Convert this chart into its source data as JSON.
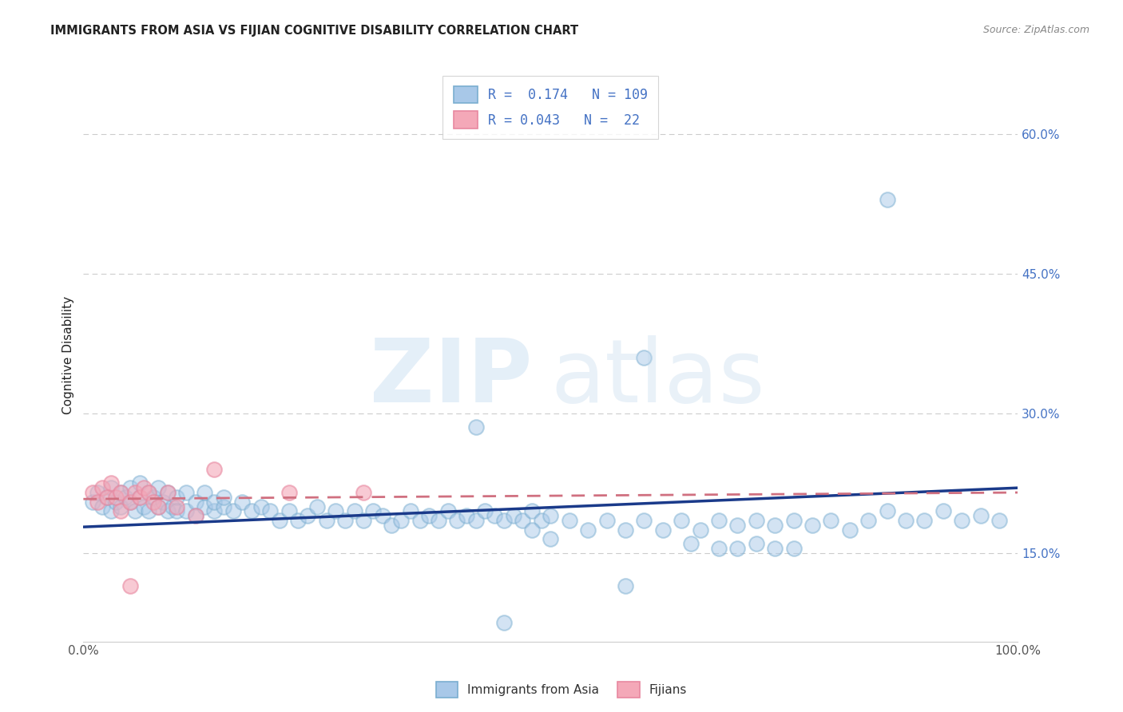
{
  "title": "IMMIGRANTS FROM ASIA VS FIJIAN COGNITIVE DISABILITY CORRELATION CHART",
  "source": "Source: ZipAtlas.com",
  "ylabel": "Cognitive Disability",
  "right_yticklabels": [
    "15.0%",
    "30.0%",
    "45.0%",
    "60.0%"
  ],
  "right_yticks": [
    0.15,
    0.3,
    0.45,
    0.6
  ],
  "xlim": [
    0.0,
    1.0
  ],
  "ylim": [
    0.055,
    0.67
  ],
  "blue_color": "#A8C8E8",
  "blue_edge_color": "#7aaed0",
  "pink_color": "#F4A8B8",
  "pink_edge_color": "#e888a0",
  "blue_line_color": "#1a3a8a",
  "pink_line_color": "#d07080",
  "grid_color": "#CCCCCC",
  "title_color": "#222222",
  "source_color": "#888888",
  "ytick_color": "#4472C4",
  "xtick_color": "#555555",
  "legend_label_color": "#4472C4",
  "watermark_zip_color": "#C5DCF0",
  "watermark_atlas_color": "#C0D8EC",
  "blue_x": [
    0.01,
    0.015,
    0.02,
    0.025,
    0.03,
    0.03,
    0.035,
    0.04,
    0.04,
    0.045,
    0.05,
    0.05,
    0.055,
    0.06,
    0.06,
    0.065,
    0.07,
    0.07,
    0.075,
    0.08,
    0.08,
    0.085,
    0.09,
    0.09,
    0.095,
    0.1,
    0.1,
    0.11,
    0.11,
    0.12,
    0.12,
    0.13,
    0.13,
    0.14,
    0.14,
    0.15,
    0.15,
    0.16,
    0.17,
    0.18,
    0.19,
    0.2,
    0.21,
    0.22,
    0.23,
    0.24,
    0.25,
    0.26,
    0.27,
    0.28,
    0.29,
    0.3,
    0.31,
    0.32,
    0.33,
    0.34,
    0.35,
    0.36,
    0.37,
    0.38,
    0.39,
    0.4,
    0.41,
    0.42,
    0.43,
    0.44,
    0.45,
    0.46,
    0.47,
    0.48,
    0.49,
    0.5,
    0.52,
    0.54,
    0.56,
    0.58,
    0.6,
    0.62,
    0.64,
    0.66,
    0.68,
    0.7,
    0.72,
    0.74,
    0.76,
    0.78,
    0.8,
    0.82,
    0.84,
    0.86,
    0.88,
    0.9,
    0.92,
    0.94,
    0.96,
    0.98,
    0.6,
    0.42,
    0.86,
    0.45,
    0.74,
    0.76,
    0.48,
    0.5,
    0.58,
    0.65,
    0.68,
    0.7,
    0.72
  ],
  "blue_y": [
    0.205,
    0.215,
    0.2,
    0.21,
    0.195,
    0.22,
    0.205,
    0.215,
    0.2,
    0.21,
    0.205,
    0.22,
    0.195,
    0.21,
    0.225,
    0.2,
    0.215,
    0.195,
    0.21,
    0.2,
    0.22,
    0.205,
    0.195,
    0.215,
    0.2,
    0.21,
    0.195,
    0.215,
    0.195,
    0.205,
    0.19,
    0.2,
    0.215,
    0.195,
    0.205,
    0.2,
    0.21,
    0.195,
    0.205,
    0.195,
    0.2,
    0.195,
    0.185,
    0.195,
    0.185,
    0.19,
    0.2,
    0.185,
    0.195,
    0.185,
    0.195,
    0.185,
    0.195,
    0.19,
    0.18,
    0.185,
    0.195,
    0.185,
    0.19,
    0.185,
    0.195,
    0.185,
    0.19,
    0.185,
    0.195,
    0.19,
    0.185,
    0.19,
    0.185,
    0.195,
    0.185,
    0.19,
    0.185,
    0.175,
    0.185,
    0.175,
    0.185,
    0.175,
    0.185,
    0.175,
    0.185,
    0.18,
    0.185,
    0.18,
    0.185,
    0.18,
    0.185,
    0.175,
    0.185,
    0.195,
    0.185,
    0.185,
    0.195,
    0.185,
    0.19,
    0.185,
    0.36,
    0.285,
    0.53,
    0.075,
    0.155,
    0.155,
    0.175,
    0.165,
    0.115,
    0.16,
    0.155,
    0.155,
    0.16
  ],
  "pink_x": [
    0.01,
    0.015,
    0.02,
    0.025,
    0.03,
    0.035,
    0.04,
    0.04,
    0.05,
    0.055,
    0.06,
    0.065,
    0.07,
    0.075,
    0.08,
    0.09,
    0.1,
    0.12,
    0.14,
    0.22,
    0.3,
    0.05
  ],
  "pink_y": [
    0.215,
    0.205,
    0.22,
    0.21,
    0.225,
    0.21,
    0.215,
    0.195,
    0.205,
    0.215,
    0.21,
    0.22,
    0.215,
    0.205,
    0.2,
    0.215,
    0.2,
    0.19,
    0.24,
    0.215,
    0.215,
    0.115
  ],
  "blue_line_x": [
    0.0,
    1.0
  ],
  "blue_line_y": [
    0.178,
    0.22
  ],
  "pink_line_x": [
    0.0,
    1.0
  ],
  "pink_line_y": [
    0.208,
    0.215
  ],
  "legend_blue_text": "R =  0.174   N = 109",
  "legend_pink_text": "R = 0.043   N =  22",
  "bottom_legend_labels": [
    "Immigrants from Asia",
    "Fijians"
  ],
  "marker_size": 180,
  "marker_alpha": 0.5,
  "marker_linewidth": 1.5
}
